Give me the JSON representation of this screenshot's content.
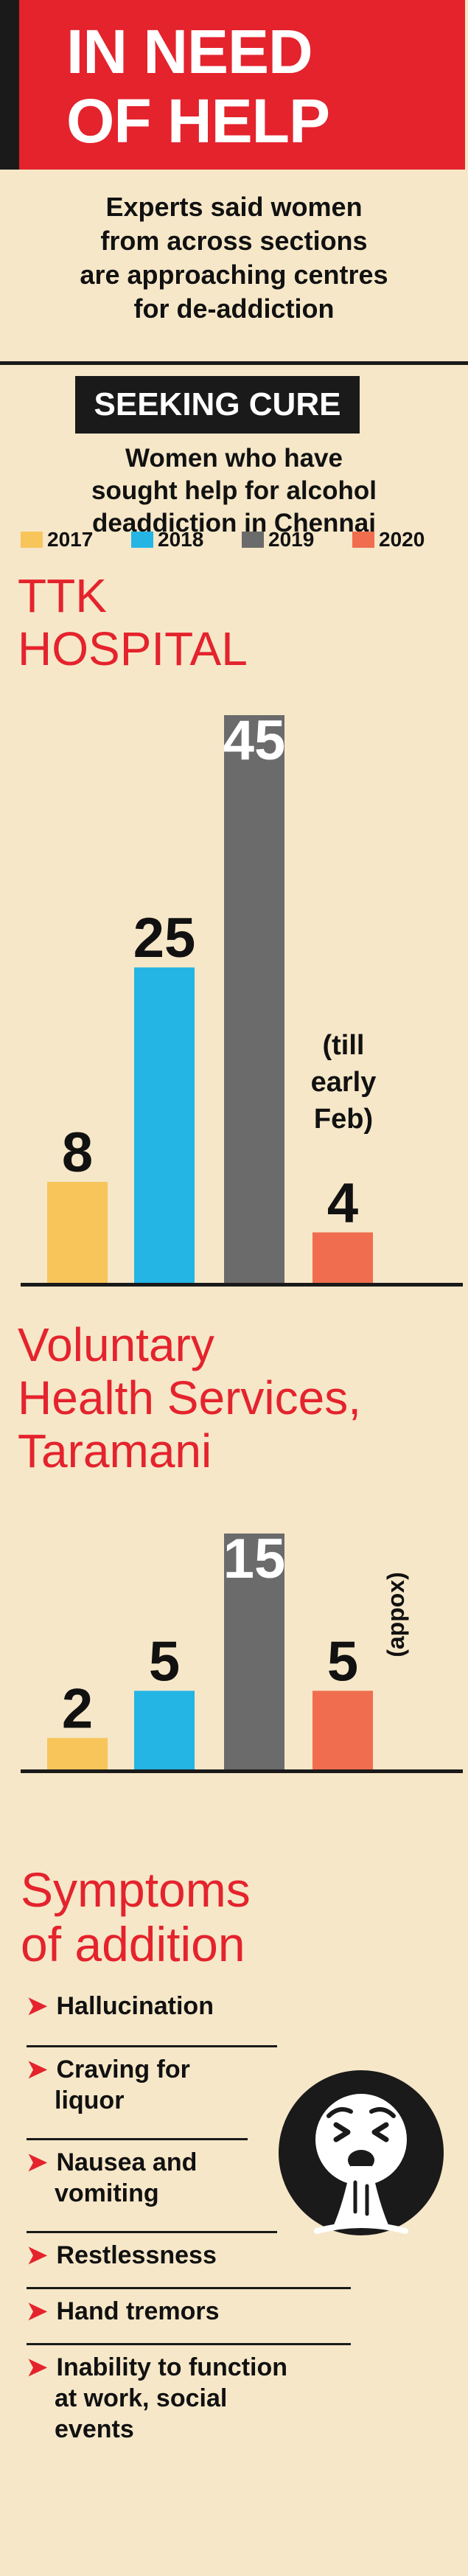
{
  "header": {
    "line1": "IN NEED",
    "line2": "OF HELP"
  },
  "intro": {
    "line1": "Experts said women",
    "line2": "from across sections",
    "line3": "are approaching centres",
    "line4": "for de-addiction"
  },
  "seek_title": "SEEKING CURE",
  "subtitle": {
    "line1": "Women who have",
    "line2": "sought help for alcohol",
    "line3": "deaddiction in Chennai"
  },
  "colors": {
    "y2017": "#f7c55a",
    "y2018": "#24b5e5",
    "y2019": "#6b6b6b",
    "y2020": "#f06e4f",
    "accent": "#e4232d"
  },
  "chart_data": [
    {
      "type": "bar",
      "title": "TTK HOSPITAL",
      "title_lines": [
        "TTK",
        "HOSPITAL"
      ],
      "categories": [
        "2017",
        "2018",
        "2019",
        "2020"
      ],
      "values": [
        8,
        25,
        45,
        4
      ],
      "value_labels": [
        "8",
        "25",
        "45",
        "4"
      ],
      "annotations": [
        "(till",
        "early",
        "Feb)"
      ],
      "ylim": [
        0,
        45
      ]
    },
    {
      "type": "bar",
      "title": "Voluntary Health Services, Taramani",
      "title_lines": [
        "Voluntary",
        "Health Services,",
        "Taramani"
      ],
      "categories": [
        "2017",
        "2018",
        "2019",
        "2020"
      ],
      "values": [
        2,
        5,
        15,
        5
      ],
      "value_labels": [
        "2",
        "5",
        "15",
        "5"
      ],
      "annotations": [
        "(appox)"
      ],
      "ylim": [
        0,
        15
      ]
    }
  ],
  "symptoms": {
    "title_line1": "Symptoms",
    "title_line2": "of addition",
    "items": [
      {
        "lines": [
          "Hallucination"
        ]
      },
      {
        "lines": [
          "Craving for",
          "liquor"
        ]
      },
      {
        "lines": [
          "Nausea and",
          "vomiting"
        ]
      },
      {
        "lines": [
          "Restlessness"
        ]
      },
      {
        "lines": [
          "Hand tremors"
        ]
      },
      {
        "lines": [
          "Inability to function",
          "at work, social",
          "events"
        ]
      }
    ],
    "icon": "vomiting-face-icon"
  }
}
